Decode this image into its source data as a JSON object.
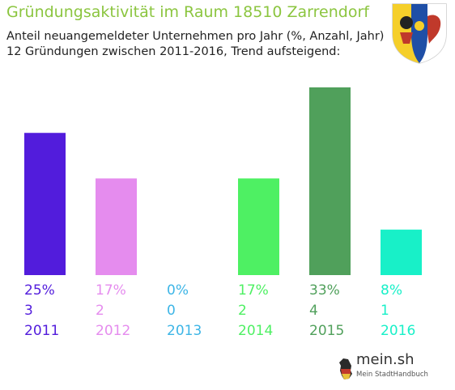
{
  "header": {
    "title": "Gründungsaktivität im Raum 18510 Zarrendorf",
    "subtitle_line1": "Anteil neuangemeldeter Unternehmen pro Jahr (%, Anzahl, Jahr)",
    "subtitle_line2": "12 Gründungen zwischen 2011-2016, Trend aufsteigend:"
  },
  "brand": {
    "name": "mein.sh",
    "tagline": "Mein StadtHandbuch"
  },
  "chart_data": {
    "type": "bar",
    "title": "Gründungsaktivität im Raum 18510 Zarrendorf",
    "categories": [
      "2011",
      "2012",
      "2013",
      "2014",
      "2015",
      "2016"
    ],
    "values": [
      25,
      17,
      0,
      17,
      33,
      8
    ],
    "percent_labels": [
      "25%",
      "17%",
      "0%",
      "17%",
      "33%",
      "8%"
    ],
    "counts": [
      "3",
      "2",
      "0",
      "2",
      "4",
      "1"
    ],
    "colors": [
      "#521cdc",
      "#e58cee",
      "#3db5e6",
      "#4ef063",
      "#50a05b",
      "#18f0c8"
    ],
    "ylim": [
      0,
      33
    ],
    "grid": false,
    "legend": "none"
  }
}
